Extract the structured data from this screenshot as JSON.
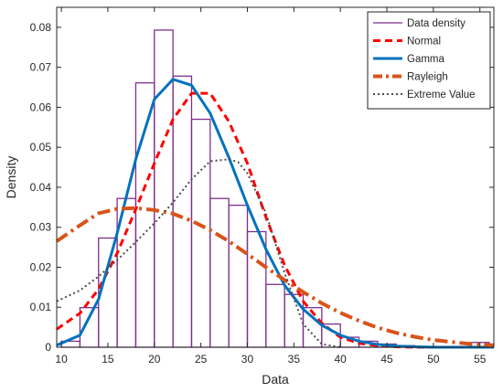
{
  "chart_data": {
    "type": "bar",
    "title": "",
    "xlabel": "Data",
    "ylabel": "Density",
    "xlim": [
      9.5,
      56.5
    ],
    "ylim": [
      0,
      0.085
    ],
    "xticks": [
      10,
      15,
      20,
      25,
      30,
      35,
      40,
      45,
      50,
      55
    ],
    "yticks": [
      0,
      0.01,
      0.02,
      0.03,
      0.04,
      0.05,
      0.06,
      0.07,
      0.08
    ],
    "grid": false,
    "legend_position": "top-right",
    "histogram": {
      "name": "Data density",
      "color": "#7e2f8e",
      "bins": [
        {
          "x0": 10,
          "x1": 12,
          "density": 0.0015
        },
        {
          "x0": 12,
          "x1": 14,
          "density": 0.0099
        },
        {
          "x0": 14,
          "x1": 16,
          "density": 0.0273
        },
        {
          "x0": 16,
          "x1": 18,
          "density": 0.0372
        },
        {
          "x0": 18,
          "x1": 20,
          "density": 0.0661
        },
        {
          "x0": 20,
          "x1": 22,
          "density": 0.0793
        },
        {
          "x0": 22,
          "x1": 24,
          "density": 0.0678
        },
        {
          "x0": 24,
          "x1": 26,
          "density": 0.057
        },
        {
          "x0": 26,
          "x1": 28,
          "density": 0.0372
        },
        {
          "x0": 28,
          "x1": 30,
          "density": 0.0355
        },
        {
          "x0": 30,
          "x1": 32,
          "density": 0.0289
        },
        {
          "x0": 32,
          "x1": 34,
          "density": 0.0157
        },
        {
          "x0": 34,
          "x1": 36,
          "density": 0.0132
        },
        {
          "x0": 36,
          "x1": 38,
          "density": 0.0099
        },
        {
          "x0": 38,
          "x1": 40,
          "density": 0.0058
        },
        {
          "x0": 40,
          "x1": 42,
          "density": 0.0025
        },
        {
          "x0": 42,
          "x1": 44,
          "density": 0.0015
        },
        {
          "x0": 44,
          "x1": 46,
          "density": 0.0008
        },
        {
          "x0": 46,
          "x1": 48,
          "density": 0.0004
        },
        {
          "x0": 48,
          "x1": 50,
          "density": 0.0002
        },
        {
          "x0": 50,
          "x1": 52,
          "density": 0.0002
        },
        {
          "x0": 52,
          "x1": 54,
          "density": 0.0002
        },
        {
          "x0": 54,
          "x1": 56,
          "density": 0.0012
        }
      ]
    },
    "series": [
      {
        "name": "Normal",
        "color": "#ff0000",
        "style": "dashed",
        "x": [
          9.5,
          12,
          14,
          16,
          18,
          20,
          22,
          24,
          26,
          28,
          30,
          32,
          34,
          36,
          38,
          40,
          42,
          44,
          46,
          48,
          50,
          52,
          54,
          56.5
        ],
        "y": [
          0.0045,
          0.0085,
          0.0145,
          0.0235,
          0.0345,
          0.046,
          0.057,
          0.0635,
          0.0635,
          0.0565,
          0.046,
          0.0325,
          0.0205,
          0.0115,
          0.006,
          0.0025,
          0.001,
          0.0004,
          0.0001,
          0.0,
          0.0,
          0.0,
          0.0,
          0.0
        ]
      },
      {
        "name": "Gamma",
        "color": "#0072bd",
        "style": "solid",
        "x": [
          9.5,
          12,
          14,
          16,
          18,
          20,
          22,
          24,
          26,
          28,
          30,
          32,
          34,
          36,
          38,
          40,
          42,
          44,
          46,
          48,
          50,
          52,
          54,
          56.5
        ],
        "y": [
          0.0005,
          0.003,
          0.012,
          0.0285,
          0.047,
          0.062,
          0.067,
          0.0655,
          0.0585,
          0.0475,
          0.0355,
          0.0245,
          0.0155,
          0.0095,
          0.0055,
          0.003,
          0.0015,
          0.0007,
          0.0003,
          0.0001,
          0.0,
          0.0,
          0.0,
          0.0
        ]
      },
      {
        "name": "Rayleigh",
        "color": "#d95319",
        "style": "dash-dot",
        "x": [
          9.5,
          12,
          14,
          16,
          18,
          20,
          22,
          24,
          26,
          28,
          30,
          32,
          34,
          36,
          38,
          40,
          42,
          44,
          46,
          48,
          50,
          52,
          54,
          56.5
        ],
        "y": [
          0.0265,
          0.0305,
          0.0335,
          0.0346,
          0.0348,
          0.0343,
          0.0334,
          0.0316,
          0.0293,
          0.0265,
          0.0233,
          0.02,
          0.0168,
          0.0138,
          0.011,
          0.0086,
          0.0066,
          0.0049,
          0.0036,
          0.0026,
          0.0018,
          0.0013,
          0.0008,
          0.0005
        ]
      },
      {
        "name": "Extreme Value",
        "color": "#4d4d4d",
        "style": "dotted",
        "x": [
          9.5,
          12,
          14,
          16,
          18,
          20,
          22,
          24,
          26,
          28,
          29,
          30,
          32,
          34,
          36,
          38,
          40
        ],
        "y": [
          0.0115,
          0.0142,
          0.0177,
          0.0218,
          0.0263,
          0.031,
          0.0362,
          0.042,
          0.0465,
          0.047,
          0.0463,
          0.0435,
          0.0335,
          0.0186,
          0.0058,
          0.0008,
          0.0
        ]
      }
    ]
  }
}
